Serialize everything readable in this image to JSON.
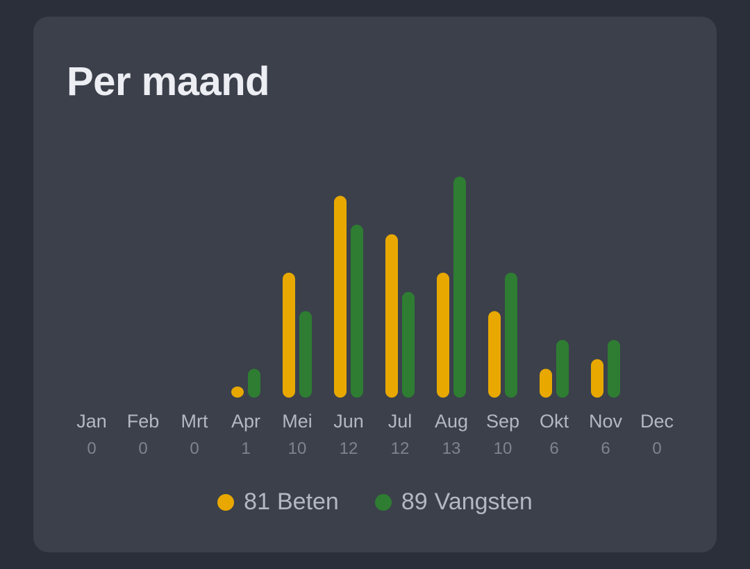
{
  "card": {
    "title": "Per maand"
  },
  "colors": {
    "beten": "#e8a800",
    "vangsten": "#2e7d32"
  },
  "chart_data": {
    "type": "bar",
    "title": "Per maand",
    "categories": [
      "Jan",
      "Feb",
      "Mrt",
      "Apr",
      "Mei",
      "Jun",
      "Jul",
      "Aug",
      "Sep",
      "Okt",
      "Nov",
      "Dec"
    ],
    "category_totals": [
      "0",
      "0",
      "0",
      "1",
      "10",
      "12",
      "12",
      "13",
      "10",
      "6",
      "6",
      "0"
    ],
    "ylim": [
      0,
      13
    ],
    "series": [
      {
        "name": "Beten",
        "values": [
          0,
          0,
          0,
          0.3,
          6.5,
          10.5,
          8.5,
          6.5,
          4.5,
          1.5,
          2.0,
          0
        ]
      },
      {
        "name": "Vangsten",
        "values": [
          0,
          0,
          0,
          1.5,
          4.5,
          9.0,
          5.5,
          11.5,
          6.5,
          3.0,
          3.0,
          0
        ]
      }
    ],
    "grid": false,
    "legend": "bottom"
  },
  "legend": {
    "items": [
      {
        "count": "81",
        "label": "Beten",
        "color": "#e8a800"
      },
      {
        "count": "89",
        "label": "Vangsten",
        "color": "#2e7d32"
      }
    ]
  }
}
